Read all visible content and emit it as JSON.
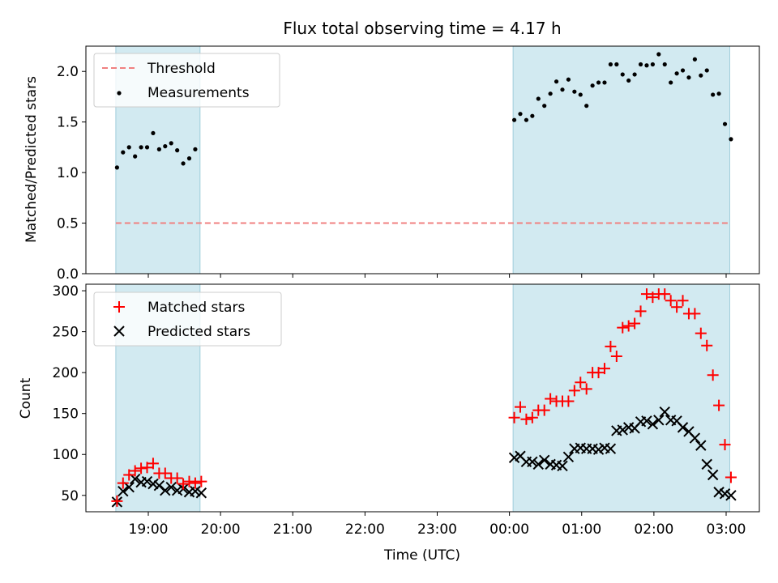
{
  "title": "Flux total observing time = 4.17 h",
  "xlabel": "Time (UTC)",
  "x_ticks": [
    "19:00",
    "20:00",
    "21:00",
    "22:00",
    "23:00",
    "00:00",
    "01:00",
    "02:00",
    "03:00"
  ],
  "colors": {
    "shade": "#add8e6",
    "threshold": "#f08080",
    "measurement": "#000000",
    "matched": "#ff0000",
    "predicted": "#000000"
  },
  "chart_data": [
    {
      "type": "scatter",
      "ylabel": "Matched/Predicted stars",
      "ylim": [
        0,
        2.25
      ],
      "y_ticks": [
        "0.0",
        "0.5",
        "1.0",
        "1.5",
        "2.0"
      ],
      "legend_position": "top-left",
      "shaded_intervals": [
        [
          "18:33",
          "19:43"
        ],
        [
          "00:03",
          "03:03"
        ]
      ],
      "threshold": {
        "name": "Threshold",
        "value": 0.5,
        "x_range": [
          "18:33",
          "03:03"
        ]
      },
      "series": [
        {
          "name": "Measurements",
          "x": [
            "18:34",
            "18:39",
            "18:44",
            "18:49",
            "18:54",
            "18:59",
            "19:04",
            "19:09",
            "19:14",
            "19:19",
            "19:24",
            "19:29",
            "19:34",
            "19:39",
            "00:04",
            "00:09",
            "00:14",
            "00:19",
            "00:24",
            "00:29",
            "00:34",
            "00:39",
            "00:44",
            "00:49",
            "00:54",
            "00:59",
            "01:04",
            "01:09",
            "01:14",
            "01:19",
            "01:24",
            "01:29",
            "01:34",
            "01:39",
            "01:44",
            "01:49",
            "01:54",
            "01:59",
            "02:04",
            "02:09",
            "02:14",
            "02:19",
            "02:24",
            "02:29",
            "02:34",
            "02:39",
            "02:44",
            "02:49",
            "02:54",
            "02:59",
            "03:04"
          ],
          "values": [
            1.05,
            1.2,
            1.25,
            1.16,
            1.25,
            1.25,
            1.39,
            1.23,
            1.26,
            1.29,
            1.22,
            1.09,
            1.14,
            1.23,
            1.52,
            1.58,
            1.52,
            1.56,
            1.73,
            1.66,
            1.78,
            1.9,
            1.82,
            1.92,
            1.8,
            1.77,
            1.66,
            1.86,
            1.89,
            1.89,
            2.07,
            2.07,
            1.97,
            1.91,
            1.97,
            2.07,
            2.06,
            2.07,
            2.17,
            2.07,
            1.89,
            1.98,
            2.01,
            1.94,
            2.12,
            1.96,
            2.01,
            1.77,
            1.78,
            1.48,
            1.33
          ]
        }
      ]
    },
    {
      "type": "scatter",
      "ylabel": "Count",
      "ylim": [
        30,
        308
      ],
      "y_ticks": [
        "50",
        "100",
        "150",
        "200",
        "250",
        "300"
      ],
      "legend_position": "top-left",
      "shaded_intervals": [
        [
          "18:33",
          "19:43"
        ],
        [
          "00:03",
          "03:03"
        ]
      ],
      "series": [
        {
          "name": "Matched stars",
          "x": [
            "18:34",
            "18:39",
            "18:44",
            "18:49",
            "18:54",
            "18:59",
            "19:04",
            "19:09",
            "19:14",
            "19:19",
            "19:24",
            "19:29",
            "19:34",
            "19:39",
            "19:44",
            "00:04",
            "00:09",
            "00:14",
            "00:19",
            "00:24",
            "00:29",
            "00:34",
            "00:39",
            "00:44",
            "00:49",
            "00:54",
            "00:59",
            "01:04",
            "01:09",
            "01:14",
            "01:19",
            "01:24",
            "01:29",
            "01:34",
            "01:39",
            "01:44",
            "01:49",
            "01:54",
            "01:59",
            "02:04",
            "02:09",
            "02:14",
            "02:19",
            "02:24",
            "02:29",
            "02:34",
            "02:39",
            "02:44",
            "02:49",
            "02:54",
            "02:59",
            "03:04"
          ],
          "values": [
            43,
            65,
            75,
            80,
            83,
            84,
            89,
            77,
            77,
            71,
            71,
            64,
            67,
            65,
            67,
            145,
            158,
            143,
            145,
            154,
            154,
            168,
            165,
            165,
            165,
            178,
            188,
            180,
            200,
            200,
            205,
            232,
            220,
            255,
            257,
            260,
            275,
            296,
            292,
            296,
            296,
            288,
            280,
            288,
            272,
            272,
            248,
            233,
            197,
            160,
            112,
            72
          ]
        },
        {
          "name": "Predicted stars",
          "x": [
            "18:34",
            "18:39",
            "18:44",
            "18:49",
            "18:54",
            "18:59",
            "19:04",
            "19:09",
            "19:14",
            "19:19",
            "19:24",
            "19:29",
            "19:34",
            "19:39",
            "19:44",
            "00:04",
            "00:09",
            "00:14",
            "00:19",
            "00:24",
            "00:29",
            "00:34",
            "00:39",
            "00:44",
            "00:49",
            "00:54",
            "00:59",
            "01:04",
            "01:09",
            "01:14",
            "01:19",
            "01:24",
            "01:29",
            "01:34",
            "01:39",
            "01:44",
            "01:49",
            "01:54",
            "01:59",
            "02:04",
            "02:09",
            "02:14",
            "02:19",
            "02:24",
            "02:29",
            "02:34",
            "02:39",
            "02:44",
            "02:49",
            "02:54",
            "02:59",
            "03:04"
          ],
          "values": [
            42,
            55,
            60,
            70,
            66,
            67,
            64,
            62,
            56,
            60,
            56,
            58,
            54,
            55,
            53,
            96,
            98,
            91,
            91,
            88,
            93,
            88,
            87,
            86,
            97,
            107,
            108,
            107,
            107,
            106,
            108,
            107,
            129,
            130,
            133,
            132,
            140,
            141,
            137,
            142,
            152,
            142,
            141,
            133,
            128,
            120,
            111,
            88,
            75,
            54,
            52,
            50
          ]
        }
      ]
    }
  ]
}
